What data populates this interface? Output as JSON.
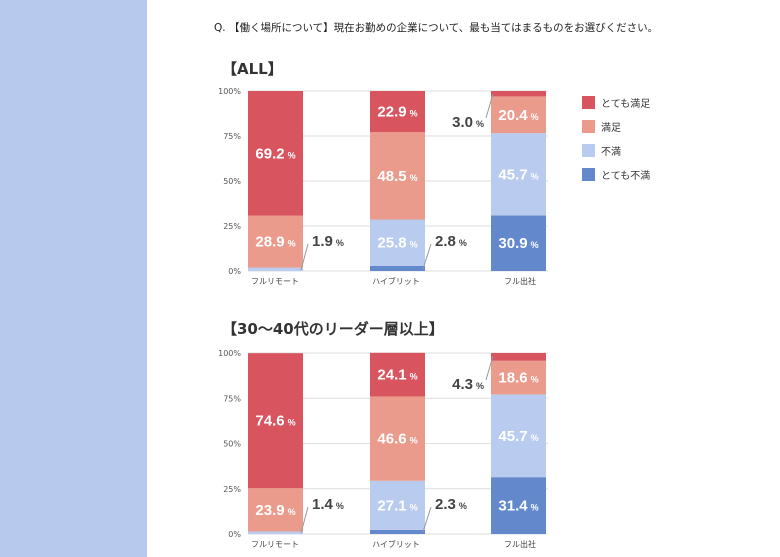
{
  "question": "Q. 【働く場所について】現在お勤めの企業について、最も当てはまるものをお選びください。",
  "colors": {
    "very_satisfied": "#d8545f",
    "satisfied": "#ea9b8c",
    "dissatisfied": "#b9cbee",
    "very_dissatisfied": "#6389cc",
    "side_panel": "#b7caed"
  },
  "legend": [
    {
      "label": "とても満足",
      "color": "#d8545f"
    },
    {
      "label": "満足",
      "color": "#ea9b8c"
    },
    {
      "label": "不満",
      "color": "#b9cbee"
    },
    {
      "label": "とても不満",
      "color": "#6389cc"
    }
  ],
  "chart_data": [
    {
      "type": "bar",
      "stacked": true,
      "title": "【ALL】",
      "categories": [
        "フルリモート",
        "ハイブリット",
        "フル出社"
      ],
      "yticks": [
        "100%",
        "75%",
        "50%",
        "25%",
        "0%"
      ],
      "ylim": [
        0,
        100
      ],
      "grid": true,
      "series": [
        {
          "name": "とても不満",
          "values": [
            0.0,
            2.8,
            30.9
          ]
        },
        {
          "name": "不満",
          "values": [
            1.9,
            25.8,
            45.7
          ]
        },
        {
          "name": "満足",
          "values": [
            28.9,
            48.5,
            20.4
          ]
        },
        {
          "name": "とても満足",
          "values": [
            69.2,
            22.9,
            3.0
          ]
        }
      ],
      "labels": [
        [
          null,
          "1.9",
          "28.9",
          "69.2"
        ],
        [
          "2.8",
          "25.8",
          "48.5",
          "22.9"
        ],
        [
          "30.9",
          "45.7",
          "20.4",
          "3.0"
        ]
      ]
    },
    {
      "type": "bar",
      "stacked": true,
      "title": "【30〜40代のリーダー層以上】",
      "categories": [
        "フルリモート",
        "ハイブリット",
        "フル出社"
      ],
      "yticks": [
        "100%",
        "75%",
        "50%",
        "25%",
        "0%"
      ],
      "ylim": [
        0,
        100
      ],
      "grid": true,
      "series": [
        {
          "name": "とても不満",
          "values": [
            0.0,
            2.3,
            31.4
          ]
        },
        {
          "name": "不満",
          "values": [
            1.4,
            27.1,
            45.7
          ]
        },
        {
          "name": "満足",
          "values": [
            23.9,
            46.6,
            18.6
          ]
        },
        {
          "name": "とても満足",
          "values": [
            74.6,
            24.1,
            4.3
          ]
        }
      ],
      "labels": [
        [
          null,
          "1.4",
          "23.9",
          "74.6"
        ],
        [
          "2.3",
          "27.1",
          "46.6",
          "24.1"
        ],
        [
          "31.4",
          "45.7",
          "18.6",
          "4.3"
        ]
      ]
    }
  ],
  "percent_sign": "%"
}
